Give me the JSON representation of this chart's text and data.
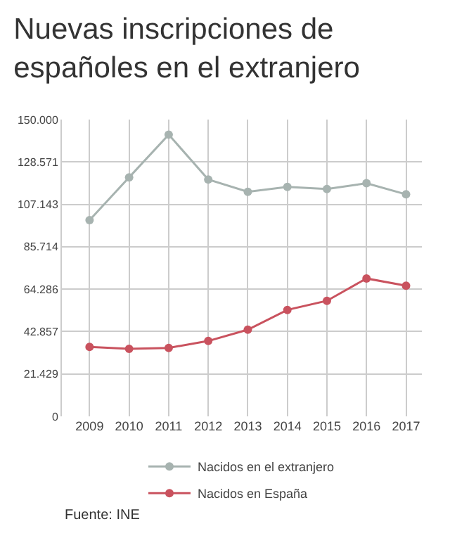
{
  "chart_data": {
    "type": "line",
    "title": "Nuevas inscripciones de españoles en el extranjero",
    "categories": [
      "2009",
      "2010",
      "2011",
      "2012",
      "2013",
      "2014",
      "2015",
      "2016",
      "2017"
    ],
    "series": [
      {
        "name": "Nacidos en el extranjero",
        "color": "#a7b3b0",
        "values": [
          99200,
          120800,
          142400,
          119700,
          113500,
          116000,
          114900,
          117800,
          112200
        ]
      },
      {
        "name": "Nacidos en España",
        "color": "#c9525e",
        "values": [
          35100,
          34100,
          34600,
          38100,
          43800,
          53800,
          58400,
          69700,
          66000
        ]
      }
    ],
    "ylim": [
      0,
      150000
    ],
    "yticks": [
      {
        "value": 0,
        "label": "0"
      },
      {
        "value": 21429,
        "label": "21.429"
      },
      {
        "value": 42857,
        "label": "42.857"
      },
      {
        "value": 64286,
        "label": "64.286"
      },
      {
        "value": 85714,
        "label": "85.714"
      },
      {
        "value": 107143,
        "label": "107.143"
      },
      {
        "value": 128571,
        "label": "128.571"
      },
      {
        "value": 150000,
        "label": "150.000"
      }
    ],
    "grid": true,
    "legend": "bottom",
    "marker": "circle",
    "line_style": "solid",
    "annotations": [
      "Fuente: INE"
    ]
  }
}
